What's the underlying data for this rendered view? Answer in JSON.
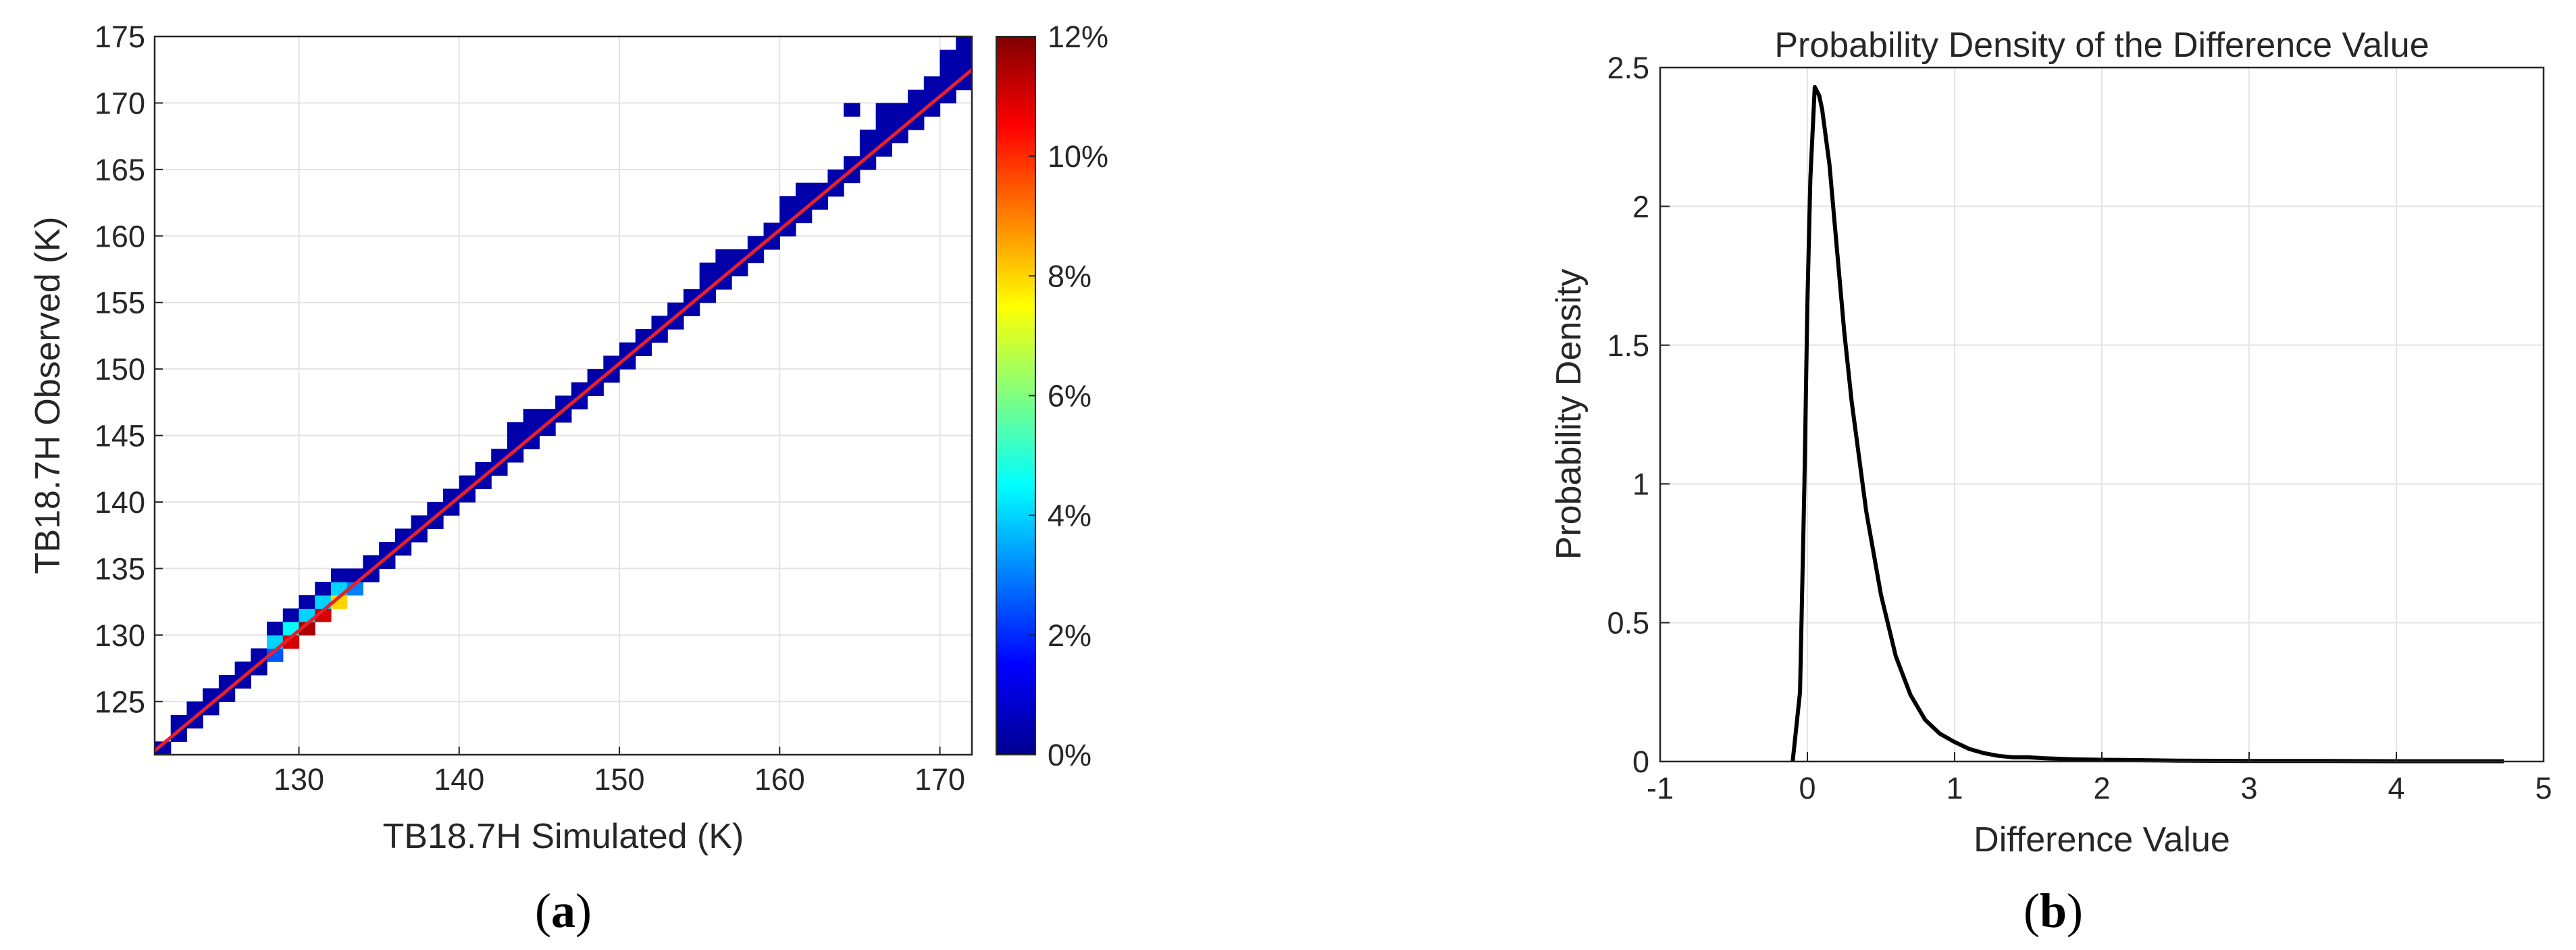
{
  "chart_data": [
    {
      "type": "heatmap",
      "panel_label": "a",
      "xlabel": "TB18.7H  Simulated (K)",
      "ylabel": "TB18.7H  Observed (K)",
      "xlim": [
        121,
        172
      ],
      "ylim": [
        121,
        175
      ],
      "x_ticks": [
        130,
        140,
        150,
        160,
        170
      ],
      "y_ticks": [
        125,
        130,
        135,
        140,
        145,
        150,
        155,
        160,
        165,
        170,
        175
      ],
      "grid": true,
      "colormap": "jet",
      "colorbar": {
        "min": 0,
        "max": 12,
        "ticks": [
          "0%",
          "2%",
          "4%",
          "6%",
          "8%",
          "10%",
          "12%"
        ]
      },
      "cells_note": "percent of samples per 1 K bin",
      "cells": [
        [
          121,
          121,
          0.5
        ],
        [
          122,
          122,
          0.5
        ],
        [
          122,
          123,
          0.5
        ],
        [
          123,
          123,
          0.5
        ],
        [
          123,
          124,
          0.5
        ],
        [
          124,
          124,
          0.5
        ],
        [
          124,
          125,
          0.5
        ],
        [
          125,
          125,
          0.5
        ],
        [
          125,
          126,
          0.5
        ],
        [
          126,
          126,
          0.5
        ],
        [
          126,
          127,
          0.5
        ],
        [
          127,
          127,
          0.5
        ],
        [
          127,
          128,
          0.5
        ],
        [
          128,
          128,
          2.5
        ],
        [
          128,
          129,
          4.0
        ],
        [
          128,
          130,
          0.5
        ],
        [
          129,
          129,
          11.0
        ],
        [
          129,
          130,
          4.5
        ],
        [
          129,
          131,
          0.5
        ],
        [
          130,
          130,
          11.5
        ],
        [
          130,
          131,
          4.0
        ],
        [
          130,
          132,
          0.5
        ],
        [
          131,
          131,
          11.0
        ],
        [
          131,
          132,
          4.0
        ],
        [
          131,
          133,
          0.5
        ],
        [
          132,
          132,
          8.0
        ],
        [
          132,
          133,
          4.0
        ],
        [
          132,
          134,
          0.5
        ],
        [
          133,
          133,
          3.0
        ],
        [
          133,
          134,
          0.5
        ],
        [
          134,
          134,
          0.5
        ],
        [
          134,
          135,
          0.5
        ],
        [
          135,
          135,
          0.5
        ],
        [
          135,
          136,
          0.5
        ],
        [
          136,
          136,
          0.5
        ],
        [
          136,
          137,
          0.5
        ],
        [
          137,
          137,
          0.5
        ],
        [
          137,
          138,
          0.5
        ],
        [
          138,
          138,
          0.5
        ],
        [
          138,
          139,
          0.5
        ],
        [
          139,
          139,
          0.5
        ],
        [
          139,
          140,
          0.5
        ],
        [
          140,
          140,
          0.5
        ],
        [
          140,
          141,
          0.5
        ],
        [
          141,
          141,
          0.5
        ],
        [
          141,
          142,
          0.5
        ],
        [
          142,
          142,
          0.5
        ],
        [
          142,
          143,
          0.5
        ],
        [
          143,
          143,
          0.5
        ],
        [
          143,
          144,
          0.5
        ],
        [
          143,
          145,
          0.5
        ],
        [
          144,
          144,
          0.5
        ],
        [
          144,
          145,
          0.5
        ],
        [
          144,
          146,
          0.5
        ],
        [
          145,
          145,
          0.5
        ],
        [
          145,
          146,
          0.5
        ],
        [
          146,
          146,
          0.5
        ],
        [
          146,
          147,
          0.5
        ],
        [
          147,
          147,
          0.5
        ],
        [
          147,
          148,
          0.5
        ],
        [
          148,
          148,
          0.5
        ],
        [
          148,
          149,
          0.5
        ],
        [
          149,
          149,
          0.5
        ],
        [
          149,
          150,
          0.5
        ],
        [
          150,
          150,
          0.5
        ],
        [
          150,
          151,
          0.5
        ],
        [
          151,
          151,
          0.5
        ],
        [
          151,
          152,
          0.5
        ],
        [
          152,
          152,
          0.5
        ],
        [
          152,
          153,
          0.5
        ],
        [
          153,
          153,
          0.5
        ],
        [
          153,
          154,
          0.5
        ],
        [
          154,
          154,
          0.5
        ],
        [
          154,
          155,
          0.5
        ],
        [
          155,
          155,
          0.5
        ],
        [
          155,
          156,
          0.5
        ],
        [
          155,
          157,
          0.5
        ],
        [
          156,
          156,
          0.5
        ],
        [
          156,
          157,
          0.5
        ],
        [
          156,
          158,
          0.5
        ],
        [
          157,
          157,
          0.5
        ],
        [
          157,
          158,
          0.5
        ],
        [
          158,
          158,
          0.5
        ],
        [
          158,
          159,
          0.5
        ],
        [
          159,
          159,
          0.5
        ],
        [
          159,
          160,
          0.5
        ],
        [
          160,
          160,
          0.5
        ],
        [
          160,
          161,
          0.5
        ],
        [
          160,
          162,
          0.5
        ],
        [
          161,
          161,
          0.5
        ],
        [
          161,
          162,
          0.5
        ],
        [
          161,
          163,
          0.5
        ],
        [
          162,
          162,
          0.5
        ],
        [
          162,
          163,
          0.5
        ],
        [
          163,
          163,
          0.5
        ],
        [
          163,
          164,
          0.5
        ],
        [
          164,
          164,
          0.5
        ],
        [
          164,
          165,
          0.5
        ],
        [
          164,
          169,
          0.5
        ],
        [
          165,
          165,
          0.5
        ],
        [
          165,
          166,
          0.5
        ],
        [
          165,
          167,
          0.5
        ],
        [
          166,
          166,
          0.5
        ],
        [
          166,
          167,
          0.5
        ],
        [
          166,
          168,
          0.5
        ],
        [
          166,
          169,
          0.5
        ],
        [
          167,
          167,
          0.5
        ],
        [
          167,
          168,
          0.5
        ],
        [
          167,
          169,
          0.5
        ],
        [
          168,
          168,
          0.5
        ],
        [
          168,
          169,
          0.5
        ],
        [
          168,
          170,
          0.5
        ],
        [
          169,
          169,
          0.5
        ],
        [
          169,
          170,
          0.5
        ],
        [
          169,
          171,
          0.5
        ],
        [
          170,
          170,
          0.5
        ],
        [
          170,
          171,
          0.5
        ],
        [
          170,
          172,
          0.5
        ],
        [
          170,
          173,
          0.5
        ],
        [
          171,
          171,
          0.5
        ],
        [
          171,
          172,
          0.5
        ],
        [
          171,
          173,
          0.5
        ],
        [
          171,
          174,
          0.5
        ]
      ],
      "fit_line": {
        "x": [
          121,
          172
        ],
        "y": [
          121.3,
          172.5
        ],
        "color": "#e8202a"
      }
    },
    {
      "type": "line",
      "panel_label": "b",
      "title": "Probability Density of the Difference Value",
      "xlabel": "Difference Value",
      "ylabel": "Probability Density",
      "xlim": [
        -1,
        5
      ],
      "ylim": [
        0,
        2.5
      ],
      "x_ticks": [
        -1,
        0,
        1,
        2,
        3,
        4,
        5
      ],
      "y_ticks": [
        0,
        0.5,
        1,
        1.5,
        2,
        2.5
      ],
      "grid": true,
      "series": [
        {
          "color": "#000000",
          "x": [
            -0.1,
            -0.05,
            -0.02,
            0.0,
            0.02,
            0.05,
            0.08,
            0.1,
            0.15,
            0.2,
            0.25,
            0.3,
            0.35,
            0.4,
            0.5,
            0.6,
            0.7,
            0.8,
            0.9,
            1.0,
            1.1,
            1.2,
            1.3,
            1.4,
            1.5,
            1.6,
            1.8,
            2.0,
            2.2,
            2.5,
            3.0,
            3.5,
            4.0,
            4.5,
            4.73
          ],
          "y": [
            0.0,
            0.25,
            1.0,
            1.65,
            2.1,
            2.43,
            2.4,
            2.35,
            2.15,
            1.85,
            1.55,
            1.3,
            1.1,
            0.9,
            0.6,
            0.38,
            0.24,
            0.15,
            0.1,
            0.07,
            0.045,
            0.03,
            0.02,
            0.015,
            0.015,
            0.012,
            0.008,
            0.006,
            0.005,
            0.003,
            0.002,
            0.002,
            0.001,
            0.001,
            0.001
          ]
        }
      ]
    }
  ]
}
